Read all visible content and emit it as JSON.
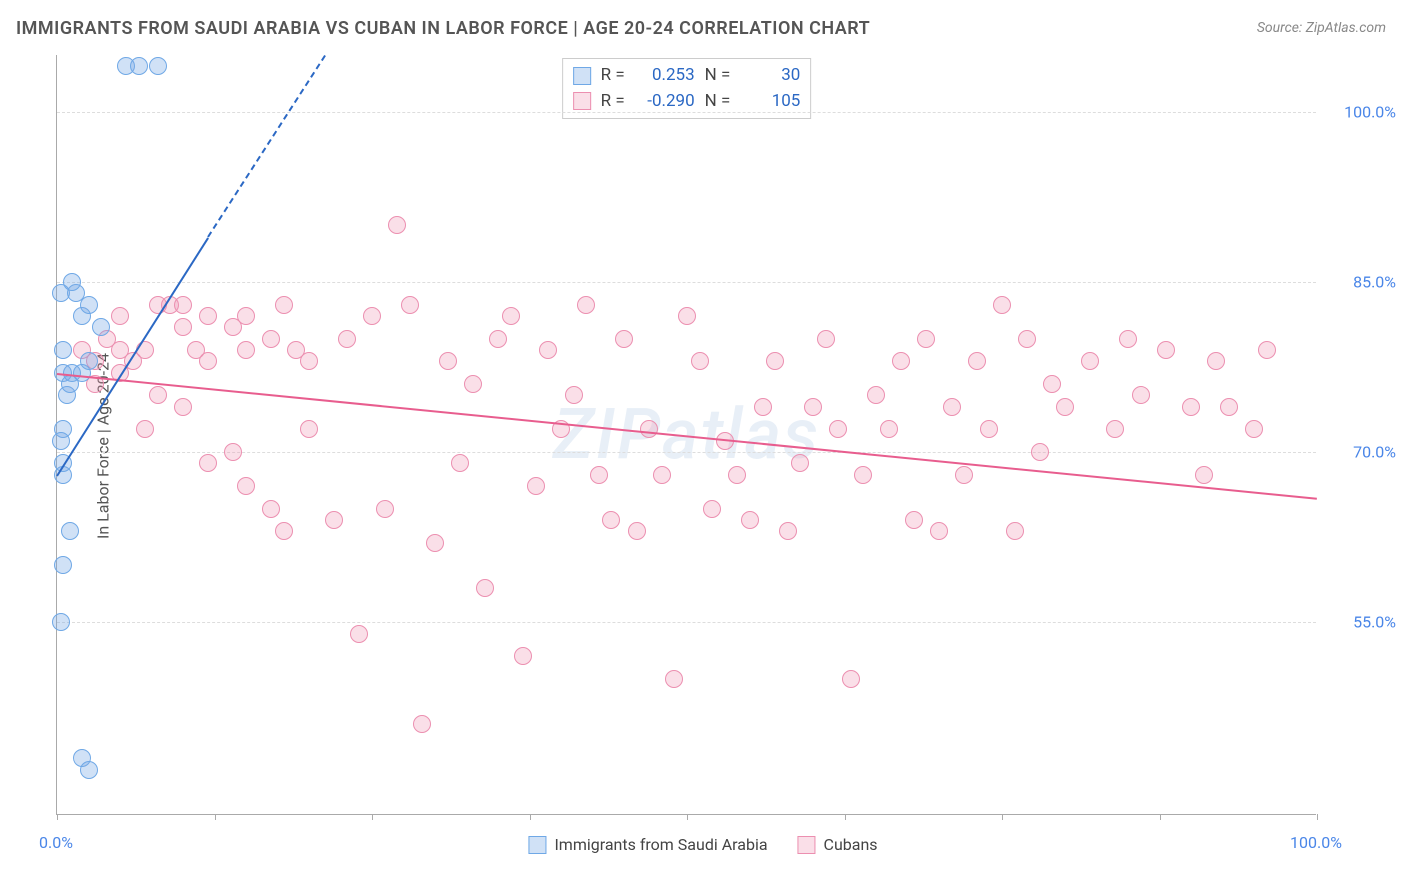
{
  "title": "IMMIGRANTS FROM SAUDI ARABIA VS CUBAN IN LABOR FORCE | AGE 20-24 CORRELATION CHART",
  "source": "Source: ZipAtlas.com",
  "y_axis_label": "In Labor Force | Age 20-24",
  "watermark": "ZIPatlas",
  "chart": {
    "type": "scatter",
    "xlim": [
      0,
      100
    ],
    "ylim": [
      38,
      105
    ],
    "y_ticks": [
      55.0,
      70.0,
      85.0,
      100.0
    ],
    "y_tick_labels": [
      "55.0%",
      "70.0%",
      "85.0%",
      "100.0%"
    ],
    "x_ticks": [
      0,
      12.5,
      25,
      37.5,
      50,
      62.5,
      75,
      87.5,
      100
    ],
    "x_tick_labels_shown": {
      "0": "0.0%",
      "100": "100.0%"
    },
    "background_color": "#ffffff",
    "grid_color": "#dddddd",
    "axis_color": "#aaaaaa",
    "tick_label_color": "#4a86e8",
    "marker_radius": 9,
    "marker_stroke_width": 1.5,
    "series": [
      {
        "name": "Immigrants from Saudi Arabia",
        "fill_color": "rgba(120,170,230,0.35)",
        "stroke_color": "#6fa8e6",
        "trend_color": "#2b68c4",
        "R": "0.253",
        "N": "30",
        "trend": {
          "x1": 0,
          "y1": 68,
          "x2": 12,
          "y2": 89,
          "x2_dashed": 30,
          "y2_dashed": 120
        },
        "points": [
          [
            0.5,
            77
          ],
          [
            0.5,
            79
          ],
          [
            0.5,
            72
          ],
          [
            0.8,
            75
          ],
          [
            0.3,
            84
          ],
          [
            1.5,
            84
          ],
          [
            1.2,
            85
          ],
          [
            2.0,
            82
          ],
          [
            2.5,
            83
          ],
          [
            3.5,
            81
          ],
          [
            1.0,
            76
          ],
          [
            0.3,
            71
          ],
          [
            0.5,
            68
          ],
          [
            0.5,
            69
          ],
          [
            1.0,
            63
          ],
          [
            0.5,
            60
          ],
          [
            1.2,
            77
          ],
          [
            2.0,
            77
          ],
          [
            2.5,
            78
          ],
          [
            0.3,
            55
          ],
          [
            2.0,
            43
          ],
          [
            2.5,
            42
          ],
          [
            5.5,
            104
          ],
          [
            6.5,
            104
          ],
          [
            8.0,
            104
          ]
        ]
      },
      {
        "name": "Cubans",
        "fill_color": "rgba(240,150,180,0.3)",
        "stroke_color": "#ec8fb0",
        "trend_color": "#e85d8e",
        "R": "-0.290",
        "N": "105",
        "trend": {
          "x1": 0,
          "y1": 77,
          "x2": 100,
          "y2": 66
        },
        "points": [
          [
            2,
            79
          ],
          [
            3,
            78
          ],
          [
            3,
            76
          ],
          [
            4,
            80
          ],
          [
            5,
            79
          ],
          [
            5,
            77
          ],
          [
            5,
            82
          ],
          [
            6,
            78
          ],
          [
            7,
            79
          ],
          [
            7,
            72
          ],
          [
            8,
            83
          ],
          [
            9,
            83
          ],
          [
            10,
            81
          ],
          [
            11,
            79
          ],
          [
            12,
            78
          ],
          [
            12,
            82
          ],
          [
            10,
            83
          ],
          [
            14,
            81
          ],
          [
            15,
            82
          ],
          [
            15,
            79
          ],
          [
            17,
            80
          ],
          [
            18,
            83
          ],
          [
            19,
            79
          ],
          [
            20,
            78
          ],
          [
            8,
            75
          ],
          [
            10,
            74
          ],
          [
            12,
            69
          ],
          [
            14,
            70
          ],
          [
            15,
            67
          ],
          [
            17,
            65
          ],
          [
            18,
            63
          ],
          [
            20,
            72
          ],
          [
            22,
            64
          ],
          [
            23,
            80
          ],
          [
            24,
            54
          ],
          [
            25,
            82
          ],
          [
            26,
            65
          ],
          [
            27,
            90
          ],
          [
            28,
            83
          ],
          [
            29,
            46
          ],
          [
            30,
            62
          ],
          [
            31,
            78
          ],
          [
            32,
            69
          ],
          [
            33,
            76
          ],
          [
            34,
            58
          ],
          [
            35,
            80
          ],
          [
            36,
            82
          ],
          [
            37,
            52
          ],
          [
            38,
            67
          ],
          [
            39,
            79
          ],
          [
            40,
            72
          ],
          [
            41,
            75
          ],
          [
            42,
            83
          ],
          [
            43,
            68
          ],
          [
            44,
            64
          ],
          [
            45,
            80
          ],
          [
            46,
            63
          ],
          [
            47,
            72
          ],
          [
            48,
            68
          ],
          [
            49,
            50
          ],
          [
            50,
            82
          ],
          [
            51,
            78
          ],
          [
            52,
            65
          ],
          [
            53,
            71
          ],
          [
            54,
            68
          ],
          [
            55,
            64
          ],
          [
            56,
            74
          ],
          [
            57,
            78
          ],
          [
            58,
            63
          ],
          [
            59,
            69
          ],
          [
            60,
            74
          ],
          [
            61,
            80
          ],
          [
            62,
            72
          ],
          [
            63,
            50
          ],
          [
            64,
            68
          ],
          [
            65,
            75
          ],
          [
            66,
            72
          ],
          [
            67,
            78
          ],
          [
            68,
            64
          ],
          [
            69,
            80
          ],
          [
            70,
            63
          ],
          [
            71,
            74
          ],
          [
            72,
            68
          ],
          [
            73,
            78
          ],
          [
            74,
            72
          ],
          [
            75,
            83
          ],
          [
            76,
            63
          ],
          [
            77,
            80
          ],
          [
            78,
            70
          ],
          [
            79,
            76
          ],
          [
            80,
            74
          ],
          [
            82,
            78
          ],
          [
            84,
            72
          ],
          [
            85,
            80
          ],
          [
            86,
            75
          ],
          [
            88,
            79
          ],
          [
            90,
            74
          ],
          [
            91,
            68
          ],
          [
            92,
            78
          ],
          [
            93,
            74
          ],
          [
            95,
            72
          ],
          [
            96,
            79
          ]
        ]
      }
    ]
  },
  "statbox": {
    "r_label": "R =",
    "n_label": "N ="
  },
  "legend": {
    "series1": "Immigrants from Saudi Arabia",
    "series2": "Cubans"
  }
}
